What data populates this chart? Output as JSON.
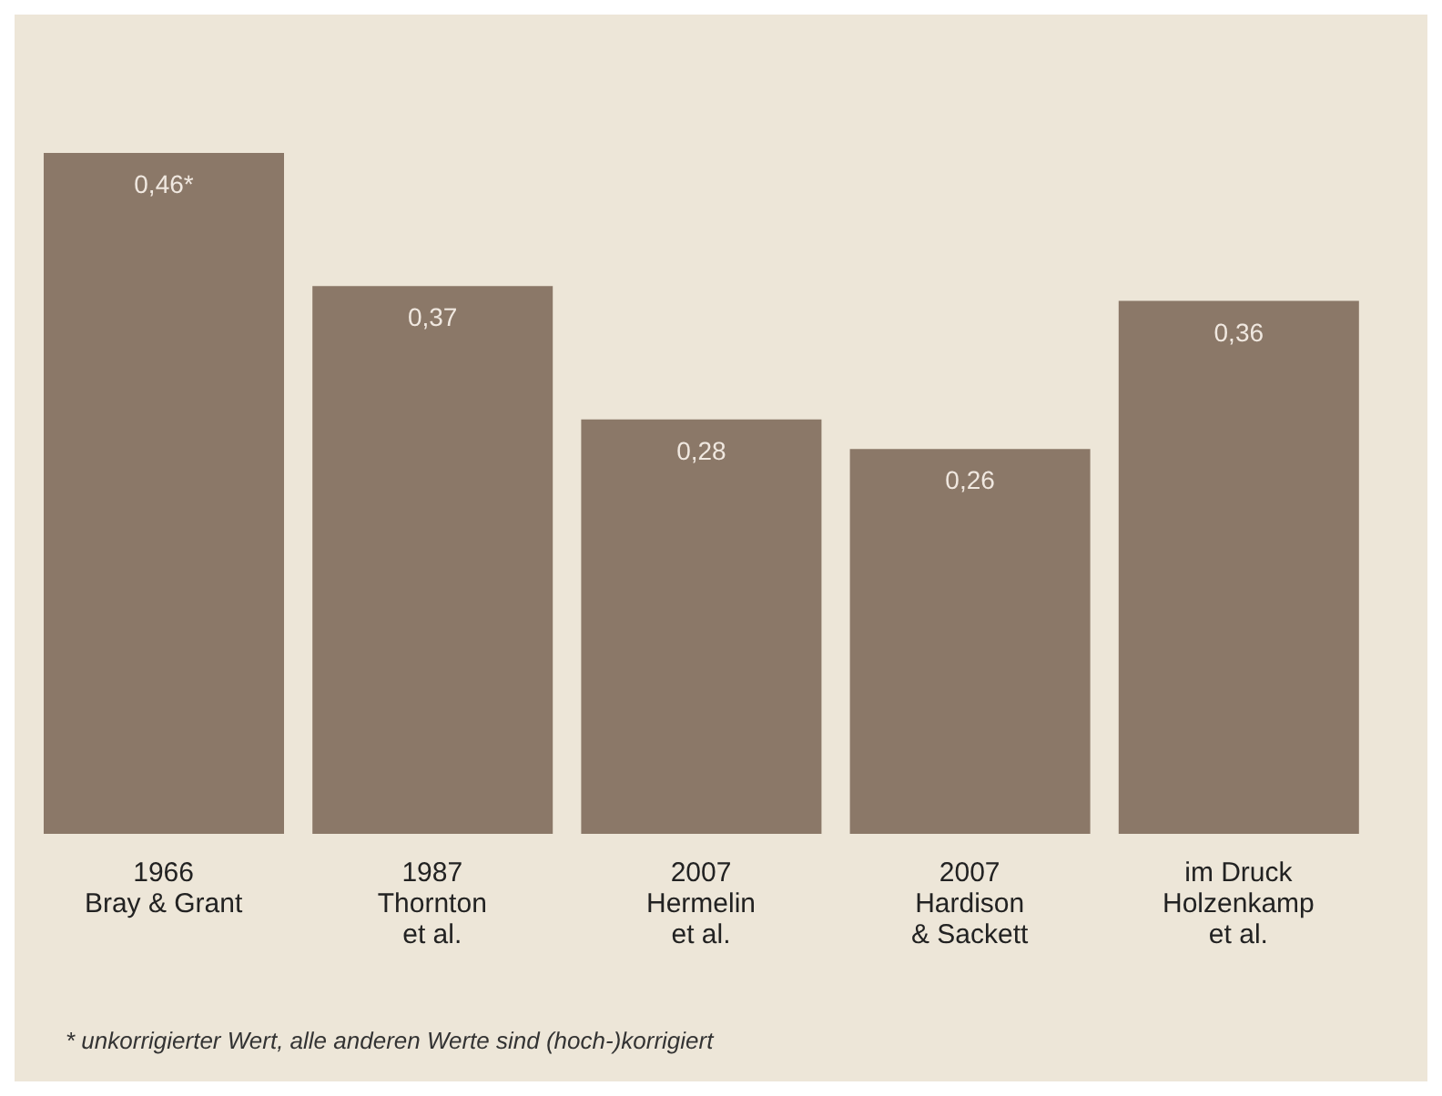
{
  "chart_data": {
    "type": "bar",
    "categories": [
      "1966\nBray & Grant",
      "1987\nThornton\net al.",
      "2007\nHermelin\net al.",
      "2007\nHardison\n& Sackett",
      "im Druck\nHolzenkamp\net al."
    ],
    "values": [
      0.46,
      0.37,
      0.28,
      0.26,
      0.36
    ],
    "value_labels": [
      "0,46*",
      "0,37",
      "0,28",
      "0,26",
      "0,36"
    ],
    "color": "#8b7868",
    "annotations": [
      "* unkorrigierter Wert, alle anderen Werte sind (hoch-)korrigiert"
    ]
  }
}
